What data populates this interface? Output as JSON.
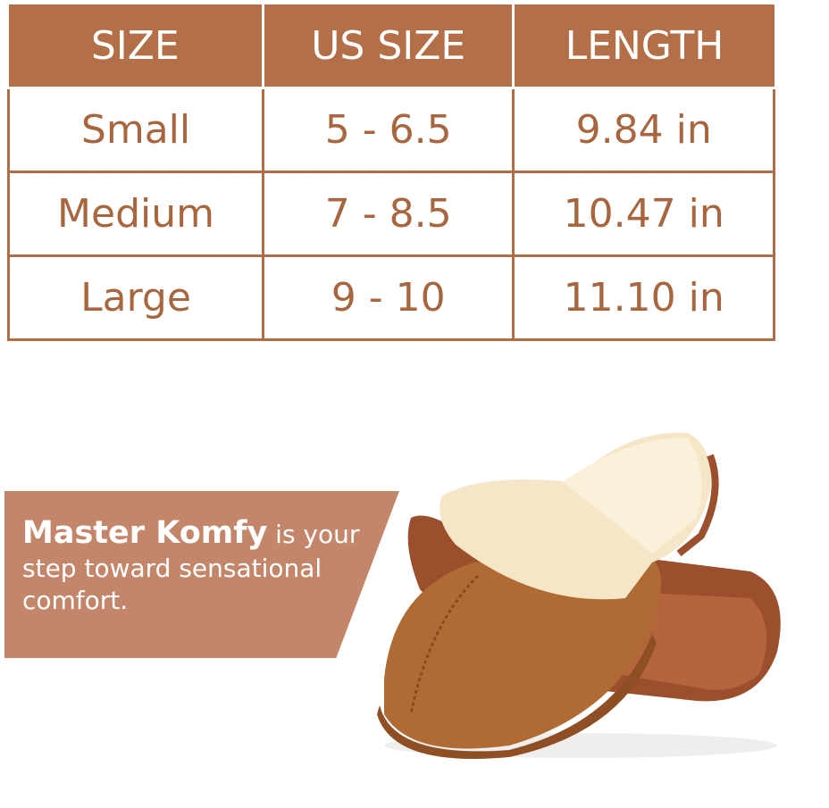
{
  "size_chart": {
    "headers": [
      "SIZE",
      "US SIZE",
      "LENGTH"
    ],
    "rows": [
      [
        "Small",
        "5 - 6.5",
        "9.84 in"
      ],
      [
        "Medium",
        "7 - 8.5",
        "10.47 in"
      ],
      [
        "Large",
        "9 - 10",
        "11.10 in"
      ]
    ]
  },
  "banner": {
    "brand": "Master Komfy",
    "text": " is your step toward sensational comfort."
  },
  "colors": {
    "header": "#b36f47",
    "text": "#a8663f",
    "banner": "#c4866a"
  }
}
